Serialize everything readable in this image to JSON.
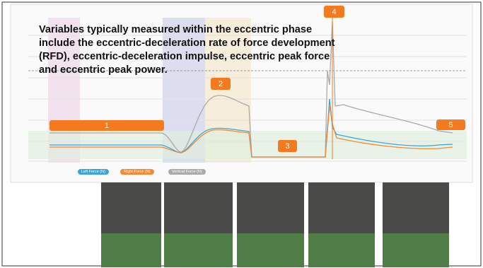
{
  "text": "Variables typically measured within the eccentric phase include the eccentric-deceleration rate of force development (RFD), eccentric-deceleration impulse, eccentric peak force and eccentric peak power.",
  "callouts": [
    "1",
    "2",
    "3",
    "4",
    "5"
  ],
  "legend": [
    "Left Force (N)",
    "Right Force (N)",
    "Vertical Force (N)"
  ]
}
